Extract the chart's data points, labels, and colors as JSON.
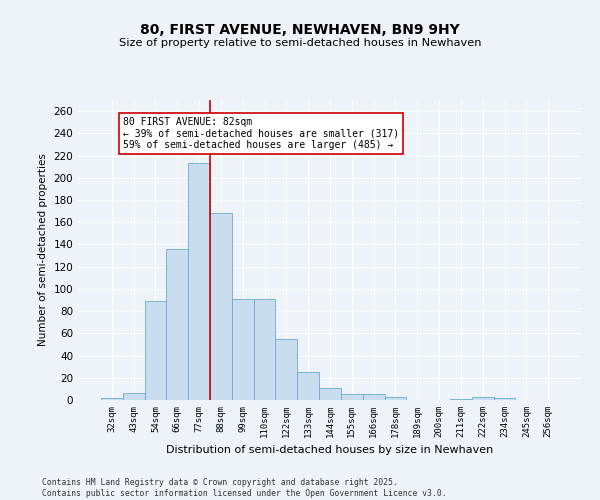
{
  "title": "80, FIRST AVENUE, NEWHAVEN, BN9 9HY",
  "subtitle": "Size of property relative to semi-detached houses in Newhaven",
  "xlabel": "Distribution of semi-detached houses by size in Newhaven",
  "ylabel": "Number of semi-detached properties",
  "categories": [
    "32sqm",
    "43sqm",
    "54sqm",
    "66sqm",
    "77sqm",
    "88sqm",
    "99sqm",
    "110sqm",
    "122sqm",
    "133sqm",
    "144sqm",
    "155sqm",
    "166sqm",
    "178sqm",
    "189sqm",
    "200sqm",
    "211sqm",
    "222sqm",
    "234sqm",
    "245sqm",
    "256sqm"
  ],
  "values": [
    2,
    6,
    89,
    136,
    213,
    168,
    91,
    91,
    55,
    25,
    11,
    5,
    5,
    3,
    0,
    0,
    1,
    3,
    2,
    0,
    0
  ],
  "bar_color": "#c9ddef",
  "bar_edge_color": "#6aaad4",
  "red_line_index": 4,
  "annotation_text": "80 FIRST AVENUE: 82sqm\n← 39% of semi-detached houses are smaller (317)\n59% of semi-detached houses are larger (485) →",
  "annotation_box_color": "#ffffff",
  "annotation_box_edge": "#cc0000",
  "red_line_color": "#cc0000",
  "background_color": "#eef2f9",
  "grid_color": "#ffffff",
  "ylim": [
    0,
    270
  ],
  "yticks": [
    0,
    20,
    40,
    60,
    80,
    100,
    120,
    140,
    160,
    180,
    200,
    220,
    240,
    260
  ],
  "footer_line1": "Contains HM Land Registry data © Crown copyright and database right 2025.",
  "footer_line2": "Contains public sector information licensed under the Open Government Licence v3.0."
}
